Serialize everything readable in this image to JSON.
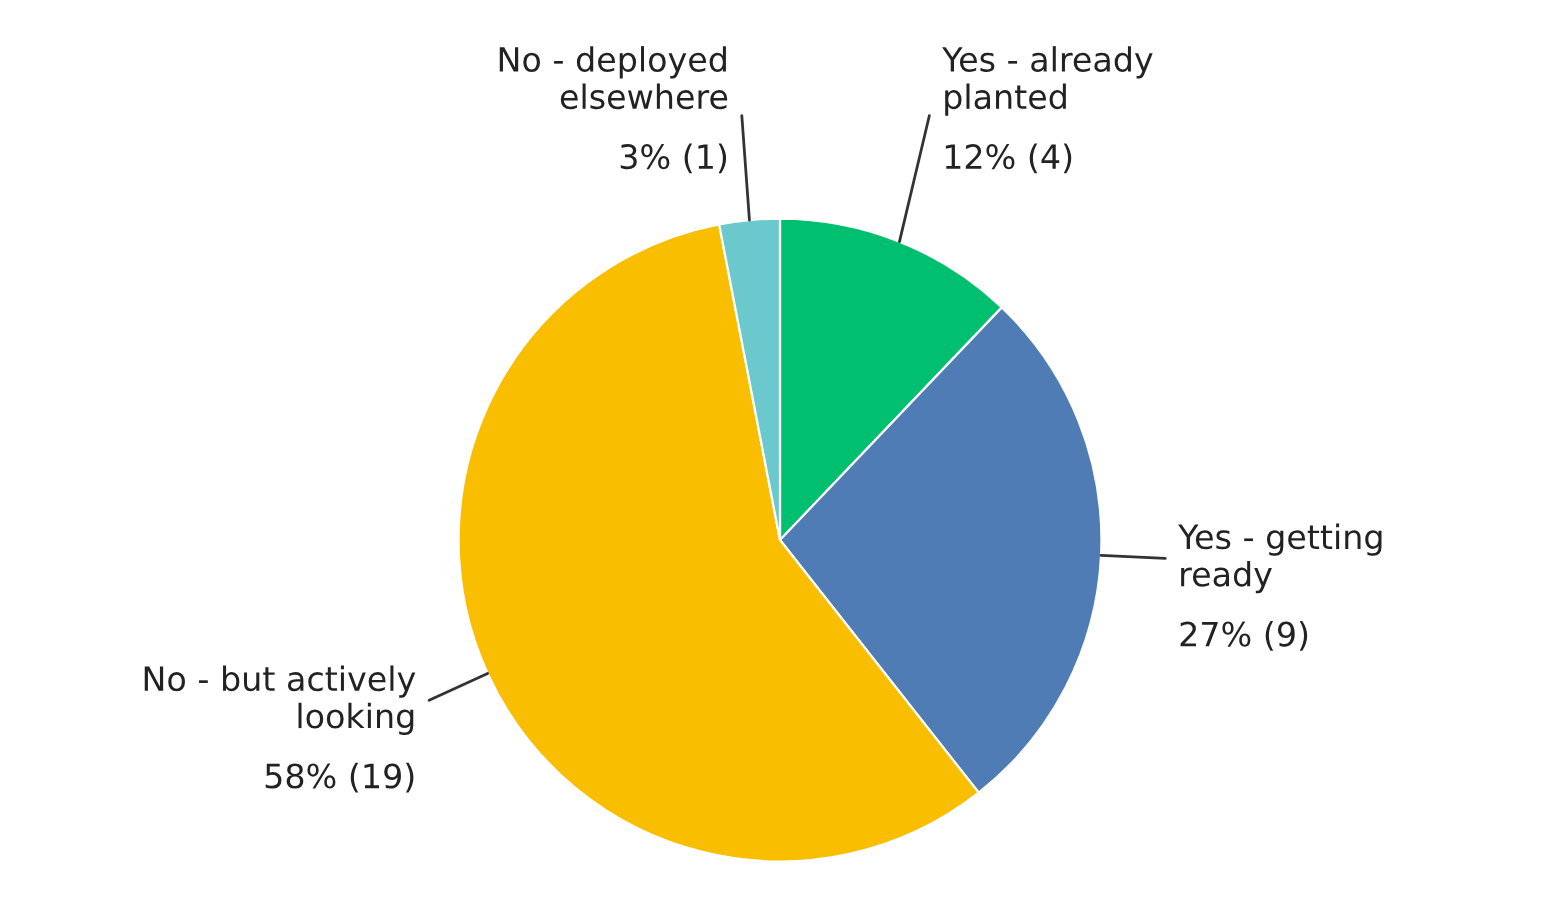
{
  "chart_data": {
    "type": "pie",
    "categories": [
      "Yes - already\nplanted",
      "Yes - getting\nready",
      "No - but actively\nlooking",
      "No - deployed\nelsewhere"
    ],
    "values": [
      4,
      9,
      19,
      1
    ],
    "value_labels": [
      "12% (4)",
      "27% (9)",
      "58% (19)",
      "3% (1)"
    ],
    "colors": [
      "#00bf6f",
      "#507cb6",
      "#f9be00",
      "#6bc8cd"
    ],
    "legend": false
  }
}
